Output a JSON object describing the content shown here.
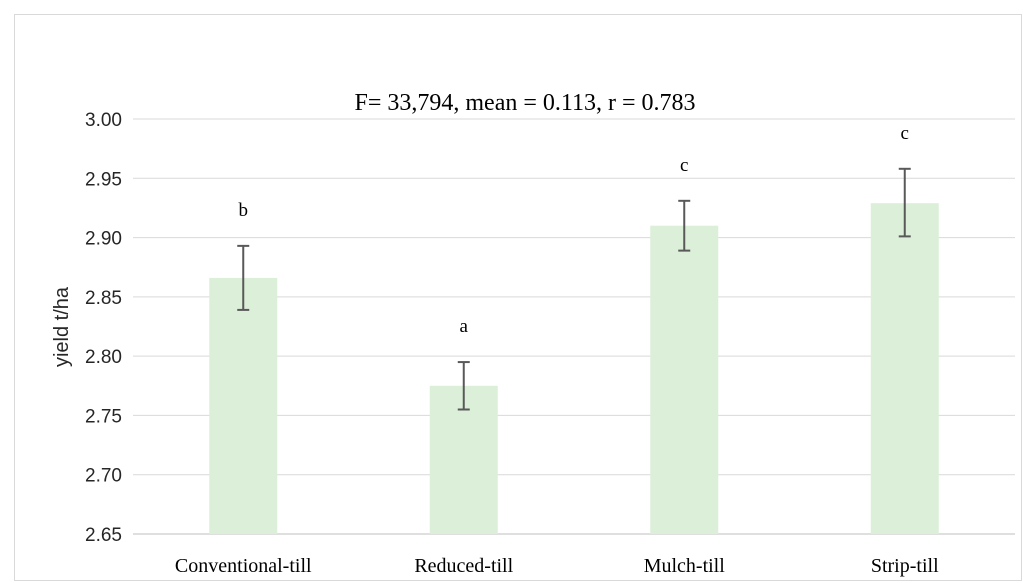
{
  "chart_data": {
    "type": "bar",
    "title": "F= 33,794, mean = 0.113,  r = 0.783",
    "xlabel": "",
    "ylabel": "yield t/ha",
    "ylim": [
      2.65,
      3.0
    ],
    "yticks": [
      "2.65",
      "2.70",
      "2.75",
      "2.80",
      "2.85",
      "2.90",
      "2.95",
      "3.00"
    ],
    "grid": true,
    "legend": "none",
    "categories": [
      "Conventional-till",
      "Reduced-till",
      "Mulch-till",
      "Strip-till"
    ],
    "values": [
      2.866,
      2.775,
      2.91,
      2.929
    ],
    "error_low": [
      2.839,
      2.755,
      2.889,
      2.901
    ],
    "error_high": [
      2.893,
      2.795,
      2.931,
      2.958
    ],
    "significance_letters": [
      "b",
      "a",
      "c",
      "c"
    ],
    "bar_color": "#dcefd9",
    "error_bar_color": "#595959",
    "gridline_color": "#d9d9d9"
  }
}
